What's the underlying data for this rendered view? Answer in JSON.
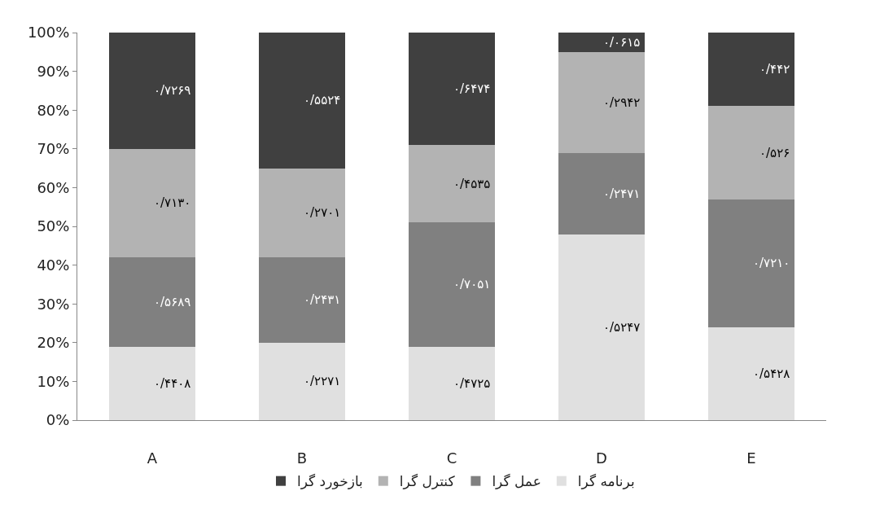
{
  "chart_data": {
    "type": "bar",
    "stacked": true,
    "categories": [
      "A",
      "B",
      "C",
      "D",
      "E"
    ],
    "series": [
      {
        "name": "برنامه گرا",
        "color": "#e0e0e0",
        "values": [
          19,
          20,
          19,
          48,
          24
        ],
        "value_labels": [
          "۰/۴۴۰۸",
          "۰/۲۲۷۱",
          "۰/۴۷۲۵",
          "۰/۵۲۴۷",
          "۰/۵۴۲۸"
        ]
      },
      {
        "name": "عمل گرا",
        "color": "#808080",
        "values": [
          23,
          22,
          32,
          21,
          33
        ],
        "value_labels": [
          "۰/۵۶۸۹",
          "۰/۲۴۳۱",
          "۰/۷۰۵۱",
          "۰/۲۴۷۱",
          "۰/۷۲۱۰"
        ]
      },
      {
        "name": "کنترل گرا",
        "color": "#b3b3b3",
        "values": [
          28,
          23,
          20,
          26,
          24
        ],
        "value_labels": [
          "۰/۷۱۳۰",
          "۰/۲۷۰۱",
          "۰/۴۵۳۵",
          "۰/۲۹۴۲",
          "۰/۵۲۶"
        ]
      },
      {
        "name": "بازخورد گرا",
        "color": "#404040",
        "values": [
          30,
          35,
          29,
          5,
          19
        ],
        "value_labels": [
          "۰/۷۲۶۹",
          "۰/۵۵۲۴",
          "۰/۶۴۷۴",
          "۰/۰۶۱۵",
          "۰/۴۴۲"
        ]
      }
    ],
    "ylim": [
      0,
      100
    ],
    "yticks": [
      {
        "value": 0,
        "label": "0%"
      },
      {
        "value": 10,
        "label": "10%"
      },
      {
        "value": 20,
        "label": "20%"
      },
      {
        "value": 30,
        "label": "30%"
      },
      {
        "value": 40,
        "label": "40%"
      },
      {
        "value": 50,
        "label": "50%"
      },
      {
        "value": 60,
        "label": "60%"
      },
      {
        "value": 70,
        "label": "70%"
      },
      {
        "value": 80,
        "label": "80%"
      },
      {
        "value": 90,
        "label": "90%"
      },
      {
        "value": 100,
        "label": "100%"
      }
    ],
    "grid": false,
    "legend": "bottom"
  }
}
